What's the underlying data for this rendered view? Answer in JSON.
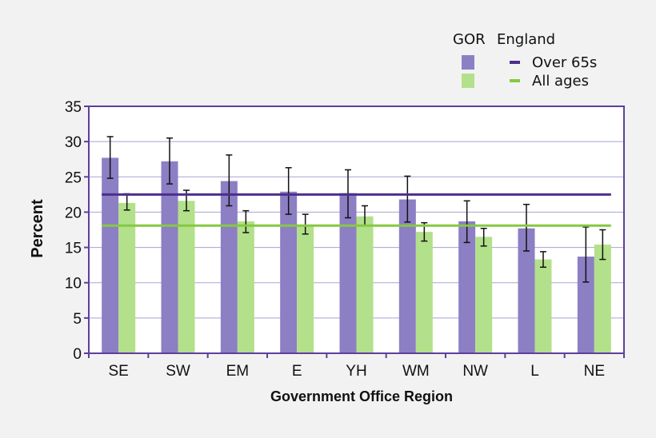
{
  "chart_data": {
    "type": "bar",
    "xlabel": "Government Office Region",
    "ylabel": "Percent",
    "ylim": [
      0,
      35
    ],
    "yticks": [
      0,
      5,
      10,
      15,
      20,
      25,
      30,
      35
    ],
    "grid": true,
    "categories": [
      "SE",
      "SW",
      "EM",
      "E",
      "YH",
      "WM",
      "NW",
      "L",
      "NE"
    ],
    "series": [
      {
        "name": "Over 65s",
        "color": "#8c7fc4",
        "values": [
          27.7,
          27.2,
          24.4,
          22.9,
          22.7,
          21.8,
          18.7,
          17.7,
          13.7
        ],
        "error_low": [
          24.8,
          24.0,
          20.9,
          19.7,
          19.2,
          18.6,
          15.7,
          14.5,
          10.1
        ],
        "error_high": [
          30.7,
          30.5,
          28.1,
          26.3,
          26.0,
          25.1,
          21.6,
          21.1,
          17.9
        ]
      },
      {
        "name": "All ages",
        "color": "#b3e08a",
        "values": [
          21.3,
          21.6,
          18.7,
          18.2,
          19.4,
          17.2,
          16.5,
          13.3,
          15.4
        ],
        "error_low": [
          20.3,
          20.2,
          17.1,
          16.9,
          18.1,
          15.9,
          15.2,
          12.2,
          13.3
        ],
        "error_high": [
          22.6,
          23.1,
          20.2,
          19.7,
          20.9,
          18.5,
          17.7,
          14.4,
          17.5
        ]
      }
    ],
    "reference_lines": [
      {
        "series": "Over 65s",
        "value": 22.5,
        "color": "#4b2f8c"
      },
      {
        "series": "All ages",
        "value": 18.1,
        "color": "#86c940"
      }
    ],
    "legend": {
      "placement": "top-right",
      "col_headers": [
        "GOR",
        "England"
      ],
      "entries": [
        "Over 65s",
        "All ages"
      ]
    },
    "axis_color": "#5e3f9e",
    "grid_color": "#a9a2d0"
  }
}
